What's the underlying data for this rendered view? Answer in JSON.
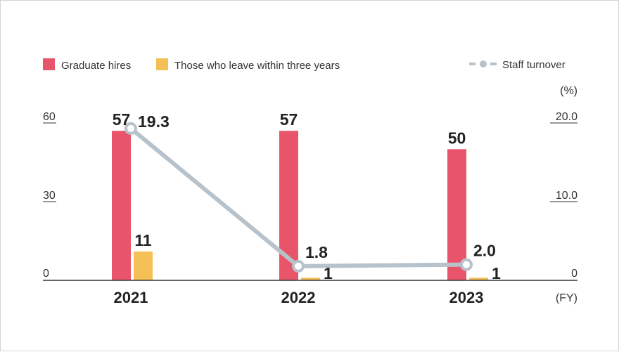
{
  "colors": {
    "hires": "#e8556a",
    "leavers": "#f5c055",
    "turnover": "#b8c2ca",
    "axis": "#333333"
  },
  "legend": {
    "hires": "Graduate hires",
    "leavers": "Those who leave within three years",
    "turnover": "Staff turnover"
  },
  "chart_data": {
    "type": "bar",
    "categories": [
      "2021",
      "2022",
      "2023"
    ],
    "x_unit": "(FY)",
    "y_left": {
      "ticks": [
        "0",
        "30",
        "60"
      ],
      "ylim": [
        0,
        60
      ]
    },
    "y_right": {
      "unit": "(%)",
      "ticks": [
        "0",
        "10.0",
        "20.0"
      ],
      "ylim": [
        0,
        20
      ]
    },
    "series": [
      {
        "name": "Graduate hires",
        "kind": "bar",
        "axis": "left",
        "values": [
          57,
          57,
          50
        ],
        "labels": [
          "57",
          "57",
          "50"
        ]
      },
      {
        "name": "Those who leave within three years",
        "kind": "bar",
        "axis": "left",
        "values": [
          11,
          1,
          1
        ],
        "labels": [
          "11",
          "1",
          "1"
        ]
      },
      {
        "name": "Staff turnover",
        "kind": "line",
        "axis": "right",
        "values": [
          19.3,
          1.8,
          2.0
        ],
        "labels": [
          "19.3",
          "1.8",
          "2.0"
        ]
      }
    ]
  }
}
